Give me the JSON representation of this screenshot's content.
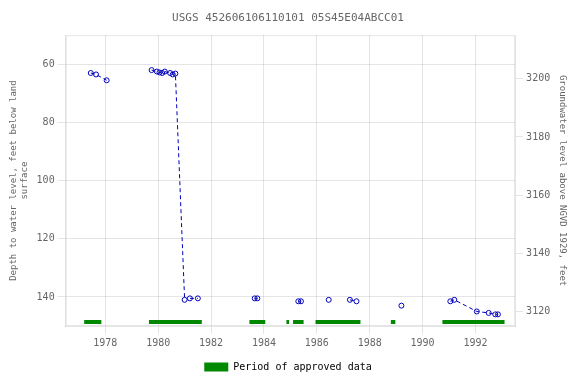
{
  "chart_data": {
    "type": "scatter",
    "title": "USGS 452606106110101 05S45E04ABCC01",
    "ylabel": "Depth to water level, feet below land\nsurface",
    "y2label": "Groundwater level above NGVD 1929, feet",
    "xlim": [
      1976.5,
      1993.5
    ],
    "xticks": [
      1978,
      1980,
      1982,
      1984,
      1986,
      1988,
      1990,
      1992
    ],
    "ylim": [
      150,
      50
    ],
    "yticks": [
      60,
      80,
      100,
      120,
      140
    ],
    "y2lim": [
      3115,
      3215
    ],
    "y2ticks": [
      3200,
      3180,
      3160,
      3140,
      3120
    ],
    "grid": true,
    "legend": "bottom",
    "series": [
      {
        "type": "scatter",
        "marker": "circle",
        "color": "#0000bb",
        "x": [
          1977.45,
          1977.65,
          1978.05,
          1979.75,
          1979.95,
          1980.05,
          1980.15,
          1980.25,
          1980.45,
          1980.55,
          1980.65,
          1981.0,
          1981.2,
          1981.5,
          1983.65,
          1983.75,
          1985.3,
          1985.4,
          1986.45,
          1987.25,
          1987.5,
          1989.2,
          1991.05,
          1991.2,
          1992.05,
          1992.5,
          1992.75,
          1992.85
        ],
        "values": [
          63.0,
          63.5,
          65.5,
          62.0,
          62.5,
          62.8,
          63.0,
          62.5,
          63.0,
          63.5,
          63.2,
          141.0,
          140.5,
          140.5,
          140.5,
          140.5,
          141.5,
          141.5,
          141.0,
          141.0,
          141.5,
          143.0,
          141.5,
          141.0,
          145.0,
          145.5,
          146.0,
          146.0
        ]
      },
      {
        "type": "line",
        "line_style": "dashed",
        "color": "#0000bb",
        "x": [
          1977.45,
          1977.65,
          1978.05,
          null,
          1979.75,
          1979.95,
          1980.05,
          1980.15,
          1980.25,
          1980.45,
          1980.55,
          1980.65,
          1981.0,
          null,
          1981.2,
          1981.5,
          null,
          1983.65,
          1983.75,
          null,
          1985.3,
          1985.4,
          null,
          1987.25,
          1987.5,
          null,
          1991.05,
          1991.2,
          1992.05,
          1992.5,
          1992.75,
          1992.85
        ],
        "values": [
          63.0,
          63.5,
          65.5,
          null,
          62.0,
          62.5,
          62.8,
          63.0,
          62.5,
          63.0,
          63.5,
          63.2,
          141.0,
          null,
          140.5,
          140.5,
          null,
          140.5,
          140.5,
          null,
          141.5,
          141.5,
          null,
          141.0,
          141.5,
          null,
          141.5,
          141.0,
          145.0,
          145.5,
          146.0,
          146.0
        ]
      }
    ],
    "periods": {
      "name": "Period of approved data",
      "color": "#008800",
      "ranges": [
        [
          1977.2,
          1977.85
        ],
        [
          1979.65,
          1981.65
        ],
        [
          1983.45,
          1984.05
        ],
        [
          1984.85,
          1984.95
        ],
        [
          1985.1,
          1985.5
        ],
        [
          1985.95,
          1987.65
        ],
        [
          1988.8,
          1988.97
        ],
        [
          1990.75,
          1993.1
        ]
      ]
    }
  }
}
